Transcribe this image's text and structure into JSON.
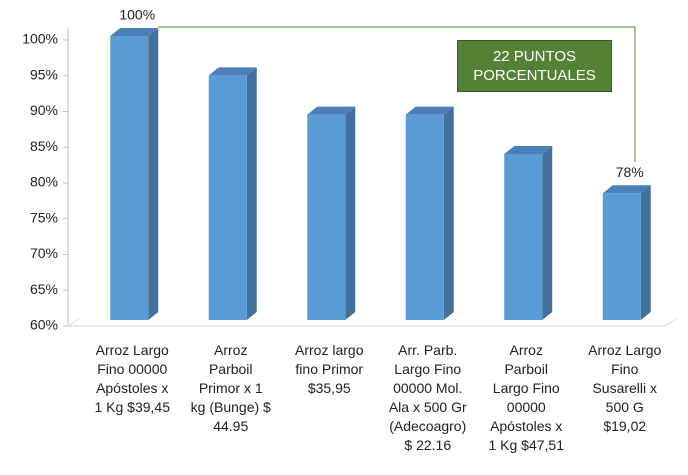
{
  "chart_data": {
    "type": "bar",
    "categories": [
      "Arroz Largo\nFino 00000\nApóstoles x\n1 Kg $39,45",
      "Arroz\nParboil\nPrimor x 1\nkg (Bunge) $\n44.95",
      "Arroz largo\nfino Primor\n$35,95",
      "Arr. Parb.\nLargo Fino\n00000 Mol.\nAla x 500 Gr\n(Adecoagro)\n$ 22.16",
      "Arroz\nParboil\nLargo Fino\n00000\nApóstoles x\n1 Kg $47,51",
      "Arroz Largo\nFino\nSusarelli x\n500 G\n$19,02"
    ],
    "values": [
      100,
      94.5,
      89,
      89,
      83.5,
      78
    ],
    "value_labels": [
      "100%",
      null,
      null,
      null,
      null,
      "78%"
    ],
    "color": "#5b9bd5",
    "annotation": "22 PUNTOS\nPORCENTUALES",
    "ylim": [
      60,
      100
    ],
    "yticks": [
      {
        "value": 60,
        "label": "60%"
      },
      {
        "value": 65,
        "label": "65%"
      },
      {
        "value": 70,
        "label": "70%"
      },
      {
        "value": 75,
        "label": "75%"
      },
      {
        "value": 80,
        "label": "80%"
      },
      {
        "value": 85,
        "label": "85%"
      },
      {
        "value": 90,
        "label": "90%"
      },
      {
        "value": 95,
        "label": "95%"
      },
      {
        "value": 100,
        "label": "100%"
      }
    ]
  }
}
